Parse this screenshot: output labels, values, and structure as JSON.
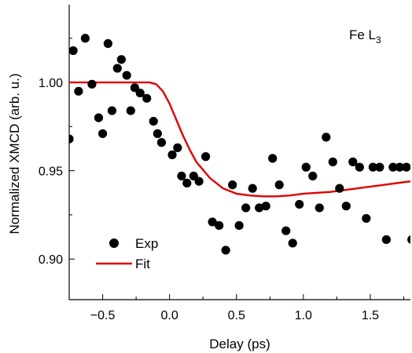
{
  "chart_data": {
    "type": "scatter",
    "title": "",
    "xlabel": "Delay (ps)",
    "ylabel": "Normalized XMCD (arb. u.)",
    "xlim": [
      -0.75,
      1.8
    ],
    "ylim": [
      0.877,
      1.044
    ],
    "x_ticks": [
      -0.5,
      0.0,
      0.5,
      1.0,
      1.5
    ],
    "x_tick_labels": [
      "−0.5",
      "0.0",
      "0.5",
      "1.0",
      "1.5"
    ],
    "y_ticks": [
      0.9,
      0.95,
      1.0
    ],
    "y_tick_labels": [
      "0.90",
      "0.95",
      "1.00"
    ],
    "annotation": {
      "base": "Fe L",
      "sub": "3"
    },
    "legend": {
      "position": "bottom-left"
    },
    "series": [
      {
        "name": "Exp",
        "kind": "scatter",
        "color": "#000000",
        "x": [
          -0.75,
          -0.72,
          -0.68,
          -0.63,
          -0.58,
          -0.53,
          -0.5,
          -0.46,
          -0.43,
          -0.39,
          -0.36,
          -0.32,
          -0.29,
          -0.26,
          -0.22,
          -0.17,
          -0.12,
          -0.09,
          -0.06,
          0.02,
          0.06,
          0.09,
          0.13,
          0.18,
          0.22,
          0.27,
          0.32,
          0.37,
          0.42,
          0.47,
          0.52,
          0.57,
          0.62,
          0.67,
          0.72,
          0.77,
          0.82,
          0.87,
          0.92,
          0.97,
          1.02,
          1.07,
          1.12,
          1.17,
          1.22,
          1.27,
          1.32,
          1.37,
          1.42,
          1.47,
          1.52,
          1.57,
          1.62,
          1.67,
          1.72,
          1.77,
          1.81
        ],
        "y": [
          0.968,
          1.018,
          0.995,
          1.025,
          0.999,
          0.98,
          0.971,
          1.022,
          0.984,
          1.008,
          1.013,
          1.004,
          0.984,
          0.997,
          0.994,
          0.991,
          0.978,
          0.971,
          0.966,
          0.959,
          0.963,
          0.947,
          0.943,
          0.947,
          0.944,
          0.958,
          0.921,
          0.919,
          0.905,
          0.942,
          0.919,
          0.929,
          0.94,
          0.929,
          0.93,
          0.957,
          0.942,
          0.916,
          0.909,
          0.931,
          0.952,
          0.947,
          0.929,
          0.969,
          0.955,
          0.94,
          0.93,
          0.955,
          0.952,
          0.923,
          0.952,
          0.952,
          0.911,
          0.952,
          0.952,
          0.952,
          0.911
        ]
      },
      {
        "name": "Fit",
        "kind": "line",
        "color": "#e00000",
        "x": [
          -0.75,
          -0.3,
          -0.15,
          -0.1,
          -0.05,
          0.0,
          0.05,
          0.1,
          0.15,
          0.2,
          0.3,
          0.4,
          0.5,
          0.6,
          0.7,
          0.8,
          0.9,
          1.0,
          1.2,
          1.4,
          1.6,
          1.8
        ],
        "y": [
          1.0,
          1.0,
          1.0,
          0.999,
          0.995,
          0.988,
          0.979,
          0.97,
          0.962,
          0.955,
          0.946,
          0.94,
          0.937,
          0.936,
          0.9355,
          0.9355,
          0.936,
          0.937,
          0.938,
          0.94,
          0.942,
          0.944
        ]
      }
    ]
  }
}
